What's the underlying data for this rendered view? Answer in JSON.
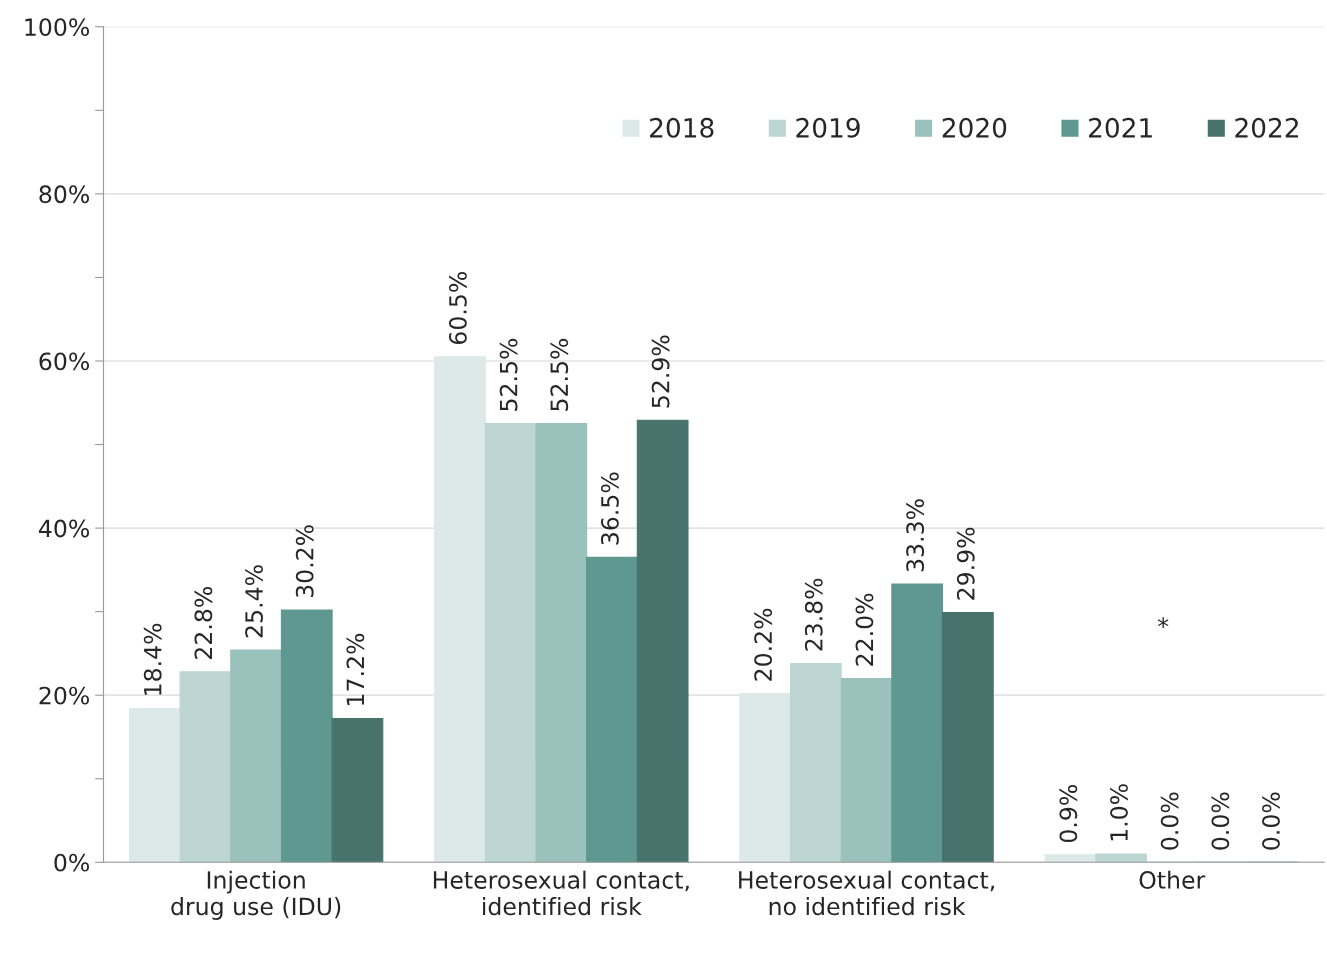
{
  "chart_data": {
    "type": "bar",
    "categories": [
      "Injection\ndrug use (IDU)",
      "Heterosexual contact,\nidentified risk",
      "Heterosexual contact,\nno identified risk",
      "Other"
    ],
    "series": [
      {
        "name": "2018",
        "color": "#dde9e8",
        "values": [
          18.4,
          60.5,
          20.2,
          0.9
        ],
        "value_labels": [
          "18.4%",
          "60.5%",
          "20.2%",
          "0.9%"
        ]
      },
      {
        "name": "2019",
        "color": "#bdd6d3",
        "values": [
          22.8,
          52.5,
          23.8,
          1.0
        ],
        "value_labels": [
          "22.8%",
          "52.5%",
          "23.8%",
          "1.0%"
        ]
      },
      {
        "name": "2020",
        "color": "#9bc1bd",
        "values": [
          25.4,
          52.5,
          22.0,
          0.0
        ],
        "value_labels": [
          "25.4%",
          "52.5%",
          "22.0%",
          "0.0%"
        ]
      },
      {
        "name": "2021",
        "color": "#5e9891",
        "values": [
          30.2,
          36.5,
          33.3,
          0.0
        ],
        "value_labels": [
          "30.2%",
          "36.5%",
          "33.3%",
          "0.0%"
        ]
      },
      {
        "name": "2022",
        "color": "#48736d",
        "values": [
          17.2,
          52.9,
          29.9,
          0.0
        ],
        "value_labels": [
          "17.2%",
          "52.9%",
          "29.9%",
          "0.0%"
        ]
      }
    ],
    "ylim": [
      0,
      100
    ],
    "yticks": [
      {
        "value": 0,
        "label": "0%"
      },
      {
        "value": 10,
        "label": null
      },
      {
        "value": 20,
        "label": "20%"
      },
      {
        "value": 30,
        "label": null
      },
      {
        "value": 40,
        "label": "40%"
      },
      {
        "value": 50,
        "label": null
      },
      {
        "value": 60,
        "label": "60%"
      },
      {
        "value": 70,
        "label": null
      },
      {
        "value": 80,
        "label": "80%"
      },
      {
        "value": 90,
        "label": null
      },
      {
        "value": 100,
        "label": "100%"
      }
    ],
    "grid": "y",
    "legend": "top right",
    "annotations": [
      "*"
    ]
  }
}
